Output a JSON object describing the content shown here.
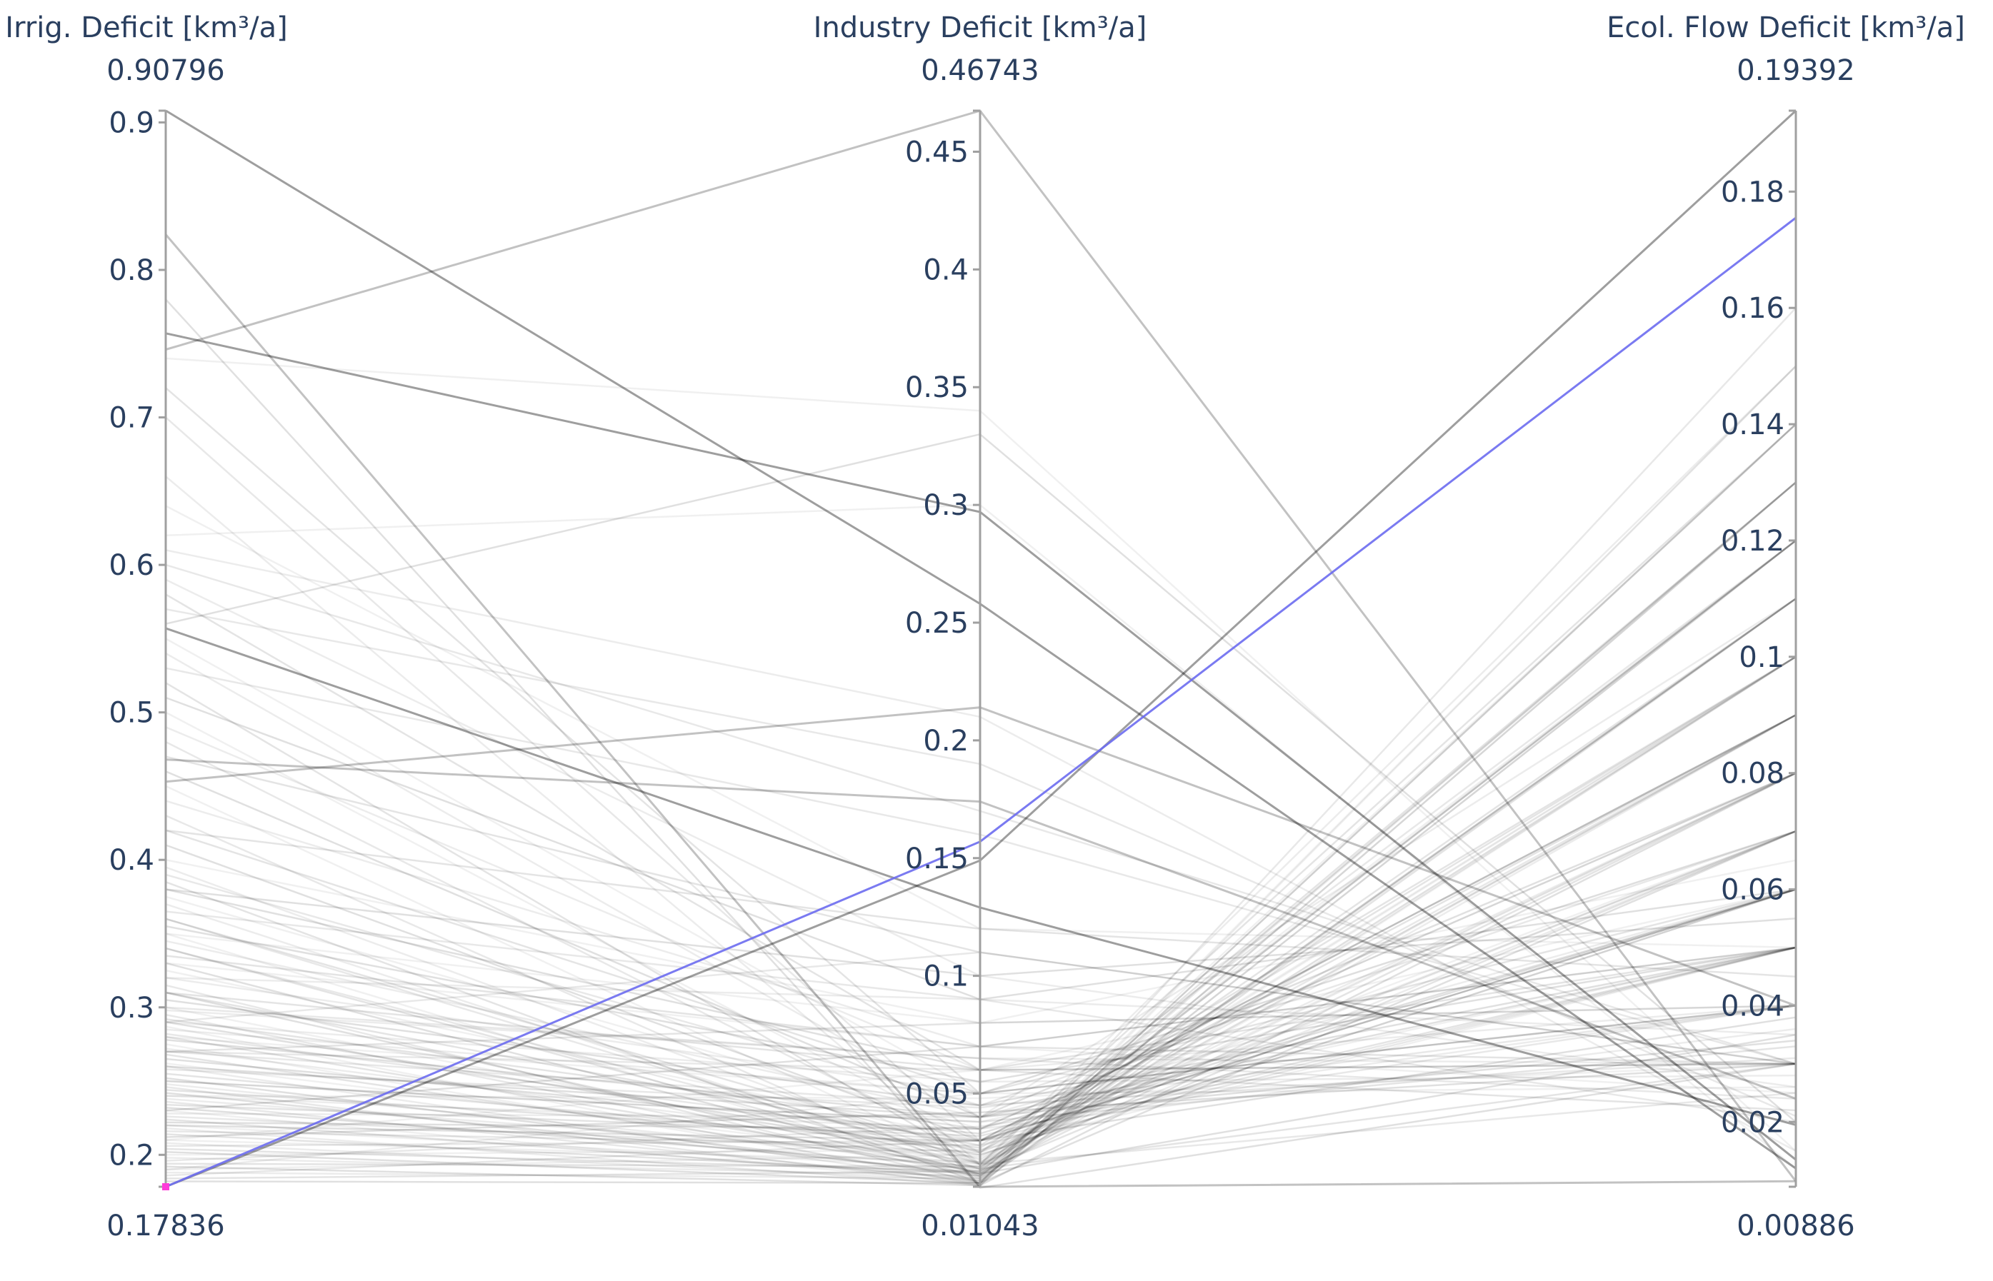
{
  "chart_data": {
    "type": "parallel_coordinates",
    "colors": {
      "context": "#000000",
      "highlight": "#6b6bf0",
      "brush": "#ff3bd9",
      "axis_text": "#2a3f5f"
    },
    "axes": [
      {
        "label": "Irrig. Deficit [km³/a]",
        "max_label": "0.90796",
        "min_label": "0.17836",
        "range": [
          0.17836,
          0.90796
        ],
        "ticks": [
          0.2,
          0.3,
          0.4,
          0.5,
          0.6,
          0.7,
          0.8,
          0.9
        ],
        "tick_labels": [
          "0.2",
          "0.3",
          "0.4",
          "0.5",
          "0.6",
          "0.7",
          "0.8",
          "0.9"
        ]
      },
      {
        "label": "Industry Deficit [km³/a]",
        "max_label": "0.46743",
        "min_label": "0.01043",
        "range": [
          0.01043,
          0.46743
        ],
        "ticks": [
          0.05,
          0.1,
          0.15,
          0.2,
          0.25,
          0.3,
          0.35,
          0.4,
          0.45
        ],
        "tick_labels": [
          "0.05",
          "0.1",
          "0.15",
          "0.2",
          "0.25",
          "0.3",
          "0.35",
          "0.4",
          "0.45"
        ]
      },
      {
        "label": "Ecol. Flow Deficit [km³/a]",
        "max_label": "0.19392",
        "min_label": "0.00886",
        "range": [
          0.00886,
          0.19392
        ],
        "ticks": [
          0.02,
          0.04,
          0.06,
          0.08,
          0.1,
          0.12,
          0.14,
          0.16,
          0.18
        ],
        "tick_labels": [
          "0.02",
          "0.04",
          "0.06",
          "0.08",
          "0.1",
          "0.12",
          "0.14",
          "0.16",
          "0.18"
        ]
      }
    ],
    "highlighted_line": [
      0.17836,
      0.157,
      0.1755
    ],
    "prominent_lines": [
      [
        0.17836,
        0.149,
        0.19392
      ],
      [
        0.908,
        0.258,
        0.012
      ],
      [
        0.757,
        0.297,
        0.0135
      ],
      [
        0.557,
        0.129,
        0.0195
      ],
      [
        0.824,
        0.0104,
        0.0098
      ],
      [
        0.746,
        0.4674,
        0.0098
      ],
      [
        0.468,
        0.174,
        0.024
      ],
      [
        0.453,
        0.214,
        0.04
      ]
    ],
    "lines": [
      [
        0.62,
        0.3,
        0.012
      ],
      [
        0.61,
        0.21,
        0.015
      ],
      [
        0.6,
        0.17,
        0.03
      ],
      [
        0.58,
        0.06,
        0.05
      ],
      [
        0.56,
        0.33,
        0.02
      ],
      [
        0.55,
        0.05,
        0.07
      ],
      [
        0.54,
        0.04,
        0.11
      ],
      [
        0.53,
        0.16,
        0.03
      ],
      [
        0.52,
        0.02,
        0.14
      ],
      [
        0.51,
        0.09,
        0.06
      ],
      [
        0.5,
        0.03,
        0.09
      ],
      [
        0.49,
        0.06,
        0.04
      ],
      [
        0.48,
        0.025,
        0.12
      ],
      [
        0.47,
        0.11,
        0.03
      ],
      [
        0.46,
        0.04,
        0.08
      ],
      [
        0.45,
        0.02,
        0.1
      ],
      [
        0.44,
        0.07,
        0.05
      ],
      [
        0.43,
        0.015,
        0.13
      ],
      [
        0.42,
        0.05,
        0.06
      ],
      [
        0.41,
        0.03,
        0.09
      ],
      [
        0.4,
        0.08,
        0.04
      ],
      [
        0.395,
        0.02,
        0.15
      ],
      [
        0.39,
        0.045,
        0.07
      ],
      [
        0.385,
        0.012,
        0.11
      ],
      [
        0.38,
        0.06,
        0.03
      ],
      [
        0.375,
        0.035,
        0.08
      ],
      [
        0.37,
        0.018,
        0.12
      ],
      [
        0.365,
        0.09,
        0.02
      ],
      [
        0.36,
        0.025,
        0.1
      ],
      [
        0.355,
        0.055,
        0.05
      ],
      [
        0.35,
        0.014,
        0.14
      ],
      [
        0.345,
        0.04,
        0.06
      ],
      [
        0.34,
        0.022,
        0.09
      ],
      [
        0.335,
        0.07,
        0.03
      ],
      [
        0.33,
        0.016,
        0.13
      ],
      [
        0.325,
        0.03,
        0.07
      ],
      [
        0.32,
        0.05,
        0.04
      ],
      [
        0.315,
        0.012,
        0.16
      ],
      [
        0.31,
        0.028,
        0.1
      ],
      [
        0.305,
        0.045,
        0.05
      ],
      [
        0.3,
        0.02,
        0.12
      ],
      [
        0.298,
        0.065,
        0.03
      ],
      [
        0.295,
        0.015,
        0.11
      ],
      [
        0.292,
        0.035,
        0.08
      ],
      [
        0.29,
        0.024,
        0.06
      ],
      [
        0.287,
        0.011,
        0.15
      ],
      [
        0.285,
        0.05,
        0.04
      ],
      [
        0.282,
        0.03,
        0.09
      ],
      [
        0.28,
        0.018,
        0.13
      ],
      [
        0.278,
        0.04,
        0.05
      ],
      [
        0.275,
        0.013,
        0.1
      ],
      [
        0.272,
        0.026,
        0.07
      ],
      [
        0.27,
        0.06,
        0.03
      ],
      [
        0.268,
        0.017,
        0.12
      ],
      [
        0.265,
        0.033,
        0.06
      ],
      [
        0.262,
        0.021,
        0.08
      ],
      [
        0.26,
        0.012,
        0.14
      ],
      [
        0.258,
        0.044,
        0.04
      ],
      [
        0.255,
        0.027,
        0.09
      ],
      [
        0.252,
        0.015,
        0.11
      ],
      [
        0.25,
        0.038,
        0.05
      ],
      [
        0.248,
        0.02,
        0.07
      ],
      [
        0.246,
        0.011,
        0.13
      ],
      [
        0.244,
        0.03,
        0.06
      ],
      [
        0.242,
        0.016,
        0.1
      ],
      [
        0.24,
        0.048,
        0.03
      ],
      [
        0.238,
        0.023,
        0.08
      ],
      [
        0.236,
        0.013,
        0.12
      ],
      [
        0.234,
        0.032,
        0.05
      ],
      [
        0.232,
        0.019,
        0.09
      ],
      [
        0.23,
        0.012,
        0.15
      ],
      [
        0.228,
        0.04,
        0.04
      ],
      [
        0.226,
        0.025,
        0.07
      ],
      [
        0.224,
        0.014,
        0.11
      ],
      [
        0.222,
        0.035,
        0.06
      ],
      [
        0.22,
        0.018,
        0.09
      ],
      [
        0.218,
        0.011,
        0.13
      ],
      [
        0.216,
        0.028,
        0.05
      ],
      [
        0.214,
        0.016,
        0.08
      ],
      [
        0.212,
        0.042,
        0.03
      ],
      [
        0.21,
        0.021,
        0.1
      ],
      [
        0.208,
        0.013,
        0.12
      ],
      [
        0.206,
        0.03,
        0.06
      ],
      [
        0.204,
        0.017,
        0.07
      ],
      [
        0.202,
        0.012,
        0.14
      ],
      [
        0.2,
        0.026,
        0.05
      ],
      [
        0.198,
        0.015,
        0.09
      ],
      [
        0.196,
        0.036,
        0.04
      ],
      [
        0.194,
        0.019,
        0.11
      ],
      [
        0.192,
        0.011,
        0.08
      ],
      [
        0.19,
        0.024,
        0.06
      ],
      [
        0.188,
        0.014,
        0.1
      ],
      [
        0.186,
        0.03,
        0.05
      ],
      [
        0.184,
        0.017,
        0.12
      ],
      [
        0.182,
        0.012,
        0.07
      ],
      [
        0.33,
        0.07,
        0.025
      ],
      [
        0.29,
        0.055,
        0.028
      ],
      [
        0.27,
        0.045,
        0.031
      ],
      [
        0.31,
        0.06,
        0.022
      ],
      [
        0.26,
        0.04,
        0.034
      ],
      [
        0.28,
        0.05,
        0.026
      ],
      [
        0.24,
        0.035,
        0.036
      ],
      [
        0.3,
        0.065,
        0.024
      ],
      [
        0.25,
        0.038,
        0.033
      ],
      [
        0.22,
        0.03,
        0.038
      ],
      [
        0.64,
        0.12,
        0.05
      ],
      [
        0.66,
        0.02,
        0.08
      ],
      [
        0.7,
        0.03,
        0.06
      ],
      [
        0.72,
        0.05,
        0.04
      ],
      [
        0.78,
        0.01,
        0.03
      ],
      [
        0.74,
        0.34,
        0.015
      ],
      [
        0.59,
        0.1,
        0.026
      ],
      [
        0.57,
        0.19,
        0.021
      ],
      [
        0.42,
        0.12,
        0.045
      ],
      [
        0.38,
        0.1,
        0.055
      ],
      [
        0.35,
        0.08,
        0.065
      ],
      [
        0.32,
        0.09,
        0.035
      ],
      [
        0.29,
        0.11,
        0.03
      ],
      [
        0.27,
        0.08,
        0.04
      ],
      [
        0.23,
        0.07,
        0.05
      ],
      [
        0.21,
        0.06,
        0.06
      ],
      [
        0.19,
        0.05,
        0.07
      ],
      [
        0.36,
        0.02,
        0.025
      ],
      [
        0.34,
        0.018,
        0.03
      ],
      [
        0.31,
        0.016,
        0.035
      ]
    ]
  }
}
